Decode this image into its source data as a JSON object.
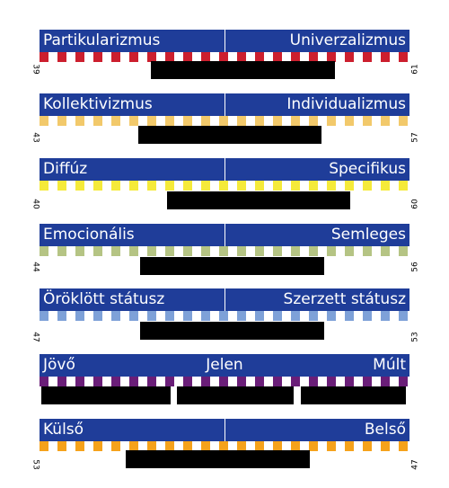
{
  "chart_data": {
    "type": "bar",
    "dimensions": [
      {
        "labels": [
          "Partikularizmus",
          "Univerzalizmus"
        ],
        "scores": [
          39,
          61
        ],
        "color": "#cc1f2e",
        "values": [
          39,
          61
        ]
      },
      {
        "labels": [
          "Kollektivizmus",
          "Individualizmus"
        ],
        "scores": [
          43,
          57
        ],
        "color": "#f2c96b",
        "values": [
          43,
          57
        ]
      },
      {
        "labels": [
          "Diffúz",
          "Specifikus"
        ],
        "scores": [
          40,
          60
        ],
        "color": "#f5ea3a",
        "values": [
          40,
          60
        ]
      },
      {
        "labels": [
          "Emocionális",
          "Semleges"
        ],
        "scores": [
          44,
          56
        ],
        "color": "#b5c484",
        "values": [
          44,
          56
        ]
      },
      {
        "labels": [
          "Öröklött státusz",
          "Szerzett státusz"
        ],
        "scores": [
          47,
          53
        ],
        "color": "#7ea1d8",
        "values": [
          47,
          53
        ]
      },
      {
        "labels": [
          "Jövő",
          "Jelen",
          "Múlt"
        ],
        "scores": [],
        "color": "#6a1e78",
        "values": [
          33,
          33,
          33
        ]
      },
      {
        "labels": [
          "Külső",
          "Belső"
        ],
        "scores": [
          53,
          47
        ],
        "color": "#f5a21b",
        "values": [
          53,
          47
        ]
      }
    ]
  }
}
